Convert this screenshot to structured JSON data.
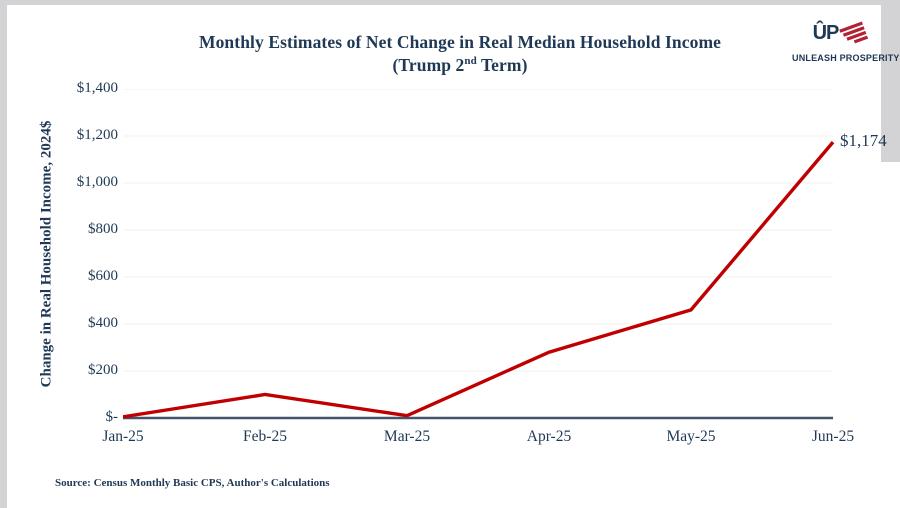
{
  "frame": {
    "background_color": "#ffffff",
    "edge_strip_color": "#d3d3d5",
    "text_color": "#1f3855"
  },
  "header": {
    "title_line1": "Monthly Estimates of Net Change in Real Median Household Income",
    "title_line2_prefix": "(Trump 2",
    "title_line2_superscript": "nd",
    "title_line2_suffix": " Term)"
  },
  "logo": {
    "monogram": "ÛP",
    "wordmark": "UNLEASH PROSPERITY",
    "stripe_color": "#b22234",
    "text_color": "#1f3855"
  },
  "chart_data": {
    "type": "line",
    "categories": [
      "Jan-25",
      "Feb-25",
      "Mar-25",
      "Apr-25",
      "May-25",
      "Jun-25"
    ],
    "values": [
      5,
      100,
      10,
      280,
      460,
      1174
    ],
    "end_label": "$1,174",
    "title": "Monthly Estimates of Net Change in Real Median Household Income (Trump 2nd Term)",
    "xlabel": "",
    "ylabel": "Change in Real Household Income, 2024$",
    "ylim": [
      0,
      1400
    ],
    "ytick_step": 200,
    "ytick_labels": [
      "$-",
      "$200",
      "$400",
      "$600",
      "$800",
      "$1,000",
      "$1,200",
      "$1,400"
    ],
    "grid": true,
    "legend": "none",
    "line_color": "#c00000",
    "axis_color": "#44546a",
    "gridline_color": "#f0f0f0"
  },
  "footer": {
    "source": "Source: Census Monthly Basic CPS, Author's Calculations"
  }
}
